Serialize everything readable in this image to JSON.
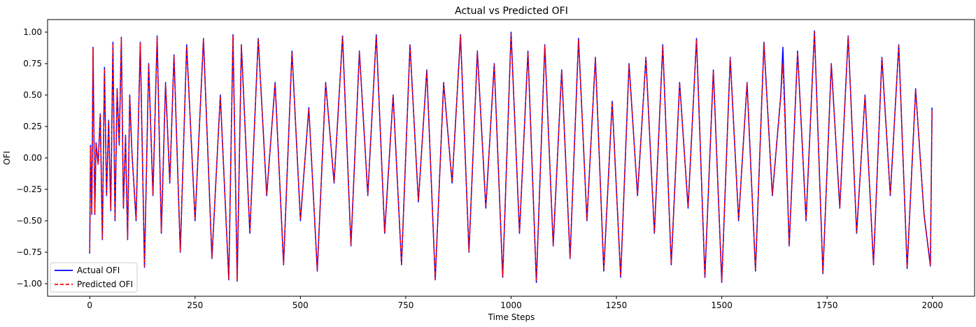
{
  "chart_data": {
    "type": "line",
    "title": "Actual vs Predicted OFI",
    "xlabel": "Time Steps",
    "ylabel": "OFI",
    "xlim": [
      -100,
      2100
    ],
    "ylim": [
      -1.1,
      1.1
    ],
    "xticks": [
      0,
      250,
      500,
      750,
      1000,
      1250,
      1500,
      1750,
      2000
    ],
    "yticks": [
      1.0,
      0.75,
      0.5,
      0.25,
      0.0,
      -0.25,
      -0.5,
      -0.75,
      -1.0
    ],
    "xtick_labels": [
      "0",
      "250",
      "500",
      "750",
      "1000",
      "1250",
      "1500",
      "1750",
      "2000"
    ],
    "ytick_labels": [
      "1.00",
      "0.75",
      "0.50",
      "0.25",
      "0.00",
      "−0.25",
      "−0.50",
      "−0.75",
      "−1.00"
    ],
    "legend": {
      "placement": "lower-left",
      "entries": [
        "Actual OFI",
        "Predicted OFI"
      ]
    },
    "grid": false,
    "series": [
      {
        "name": "Actual OFI",
        "color": "#0000ff",
        "style": "solid",
        "x": [
          0,
          2,
          5,
          8,
          12,
          15,
          20,
          25,
          30,
          35,
          40,
          45,
          50,
          55,
          60,
          65,
          70,
          75,
          80,
          85,
          90,
          95,
          100,
          110,
          120,
          130,
          140,
          150,
          160,
          170,
          180,
          190,
          200,
          215,
          230,
          250,
          270,
          290,
          310,
          330,
          340,
          350,
          360,
          380,
          400,
          420,
          440,
          460,
          480,
          500,
          520,
          540,
          560,
          580,
          600,
          620,
          640,
          660,
          680,
          700,
          720,
          740,
          760,
          780,
          800,
          820,
          840,
          860,
          880,
          900,
          920,
          940,
          960,
          980,
          1000,
          1020,
          1040,
          1060,
          1080,
          1100,
          1120,
          1140,
          1160,
          1180,
          1200,
          1220,
          1240,
          1260,
          1280,
          1300,
          1320,
          1340,
          1360,
          1380,
          1400,
          1420,
          1440,
          1460,
          1480,
          1500,
          1520,
          1540,
          1560,
          1580,
          1600,
          1620,
          1640,
          1645,
          1660,
          1680,
          1700,
          1720,
          1740,
          1760,
          1780,
          1800,
          1820,
          1840,
          1860,
          1880,
          1900,
          1920,
          1940,
          1960,
          1980,
          1995,
          1999
        ],
        "y": [
          -0.76,
          0.1,
          -0.45,
          0.88,
          -0.45,
          0.12,
          -0.05,
          0.35,
          -0.65,
          0.72,
          -0.3,
          0.3,
          -0.42,
          0.92,
          -0.5,
          0.55,
          0.1,
          0.96,
          -0.4,
          0.18,
          -0.65,
          0.5,
          0.05,
          -0.5,
          0.92,
          -0.87,
          0.75,
          -0.3,
          0.97,
          -0.6,
          0.6,
          -0.2,
          0.82,
          -0.75,
          0.9,
          -0.5,
          0.95,
          -0.8,
          0.5,
          -0.97,
          0.98,
          -0.98,
          0.9,
          -0.6,
          0.95,
          -0.3,
          0.6,
          -0.85,
          0.85,
          -0.5,
          0.4,
          -0.9,
          0.6,
          -0.2,
          0.97,
          -0.7,
          0.85,
          -0.3,
          0.98,
          -0.6,
          0.5,
          -0.85,
          0.9,
          -0.35,
          0.7,
          -0.97,
          0.6,
          -0.2,
          0.98,
          -0.75,
          0.85,
          -0.4,
          0.75,
          -0.95,
          1.0,
          -0.6,
          0.85,
          -0.99,
          0.9,
          -0.7,
          0.7,
          -0.8,
          0.95,
          -0.5,
          0.8,
          -0.9,
          0.45,
          -0.95,
          0.75,
          -0.3,
          0.8,
          -0.6,
          0.9,
          -0.85,
          0.6,
          -0.4,
          0.95,
          -0.95,
          0.7,
          -0.99,
          0.8,
          -0.5,
          0.6,
          -0.9,
          0.92,
          -0.3,
          0.5,
          0.88,
          -0.7,
          0.85,
          -0.5,
          1.01,
          -0.92,
          0.75,
          -0.4,
          0.97,
          -0.6,
          0.5,
          -0.85,
          0.8,
          -0.3,
          0.9,
          -0.88,
          0.55,
          -0.45,
          -0.86,
          0.4
        ]
      },
      {
        "name": "Predicted OFI",
        "color": "#ff0000",
        "style": "dashed",
        "x": [
          0,
          2,
          5,
          8,
          12,
          15,
          20,
          25,
          30,
          35,
          40,
          45,
          50,
          55,
          60,
          65,
          70,
          75,
          80,
          85,
          90,
          95,
          100,
          110,
          120,
          130,
          140,
          150,
          160,
          170,
          180,
          190,
          200,
          215,
          230,
          250,
          270,
          290,
          310,
          330,
          340,
          350,
          360,
          380,
          400,
          420,
          440,
          460,
          480,
          500,
          520,
          540,
          560,
          580,
          600,
          620,
          640,
          660,
          680,
          700,
          720,
          740,
          760,
          780,
          800,
          820,
          840,
          860,
          880,
          900,
          920,
          940,
          960,
          980,
          1000,
          1020,
          1040,
          1060,
          1080,
          1100,
          1120,
          1140,
          1160,
          1180,
          1200,
          1220,
          1240,
          1260,
          1280,
          1300,
          1320,
          1340,
          1360,
          1380,
          1400,
          1420,
          1440,
          1460,
          1480,
          1500,
          1520,
          1540,
          1560,
          1580,
          1600,
          1620,
          1640,
          1645,
          1660,
          1680,
          1700,
          1720,
          1740,
          1760,
          1780,
          1800,
          1820,
          1840,
          1860,
          1880,
          1900,
          1920,
          1940,
          1960,
          1980,
          1995,
          1999
        ],
        "y": [
          -0.74,
          0.09,
          -0.44,
          0.87,
          -0.44,
          0.11,
          -0.05,
          0.34,
          -0.64,
          0.71,
          -0.29,
          0.29,
          -0.41,
          0.91,
          -0.49,
          0.54,
          0.1,
          0.95,
          -0.39,
          0.17,
          -0.64,
          0.49,
          0.05,
          -0.49,
          0.91,
          -0.86,
          0.74,
          -0.29,
          0.96,
          -0.59,
          0.59,
          -0.19,
          0.81,
          -0.74,
          0.89,
          -0.49,
          0.94,
          -0.79,
          0.49,
          -0.96,
          0.97,
          -0.97,
          0.89,
          -0.59,
          0.94,
          -0.29,
          0.59,
          -0.84,
          0.84,
          -0.49,
          0.39,
          -0.89,
          0.59,
          -0.19,
          0.96,
          -0.69,
          0.84,
          -0.29,
          0.97,
          -0.59,
          0.49,
          -0.84,
          0.89,
          -0.34,
          0.69,
          -0.96,
          0.59,
          -0.19,
          0.97,
          -0.74,
          0.84,
          -0.39,
          0.74,
          -0.94,
          0.98,
          -0.59,
          0.84,
          -0.98,
          0.89,
          -0.69,
          0.69,
          -0.79,
          0.94,
          -0.49,
          0.79,
          -0.89,
          0.44,
          -0.94,
          0.74,
          -0.29,
          0.79,
          -0.59,
          0.89,
          -0.84,
          0.59,
          -0.39,
          0.94,
          -0.94,
          0.69,
          -0.98,
          0.79,
          -0.49,
          0.59,
          -0.89,
          0.91,
          -0.29,
          0.49,
          0.75,
          -0.69,
          0.84,
          -0.49,
          1.0,
          -0.91,
          0.74,
          -0.39,
          0.96,
          -0.59,
          0.49,
          -0.84,
          0.79,
          -0.29,
          0.89,
          -0.87,
          0.54,
          -0.44,
          -0.85,
          0.39
        ]
      }
    ]
  }
}
